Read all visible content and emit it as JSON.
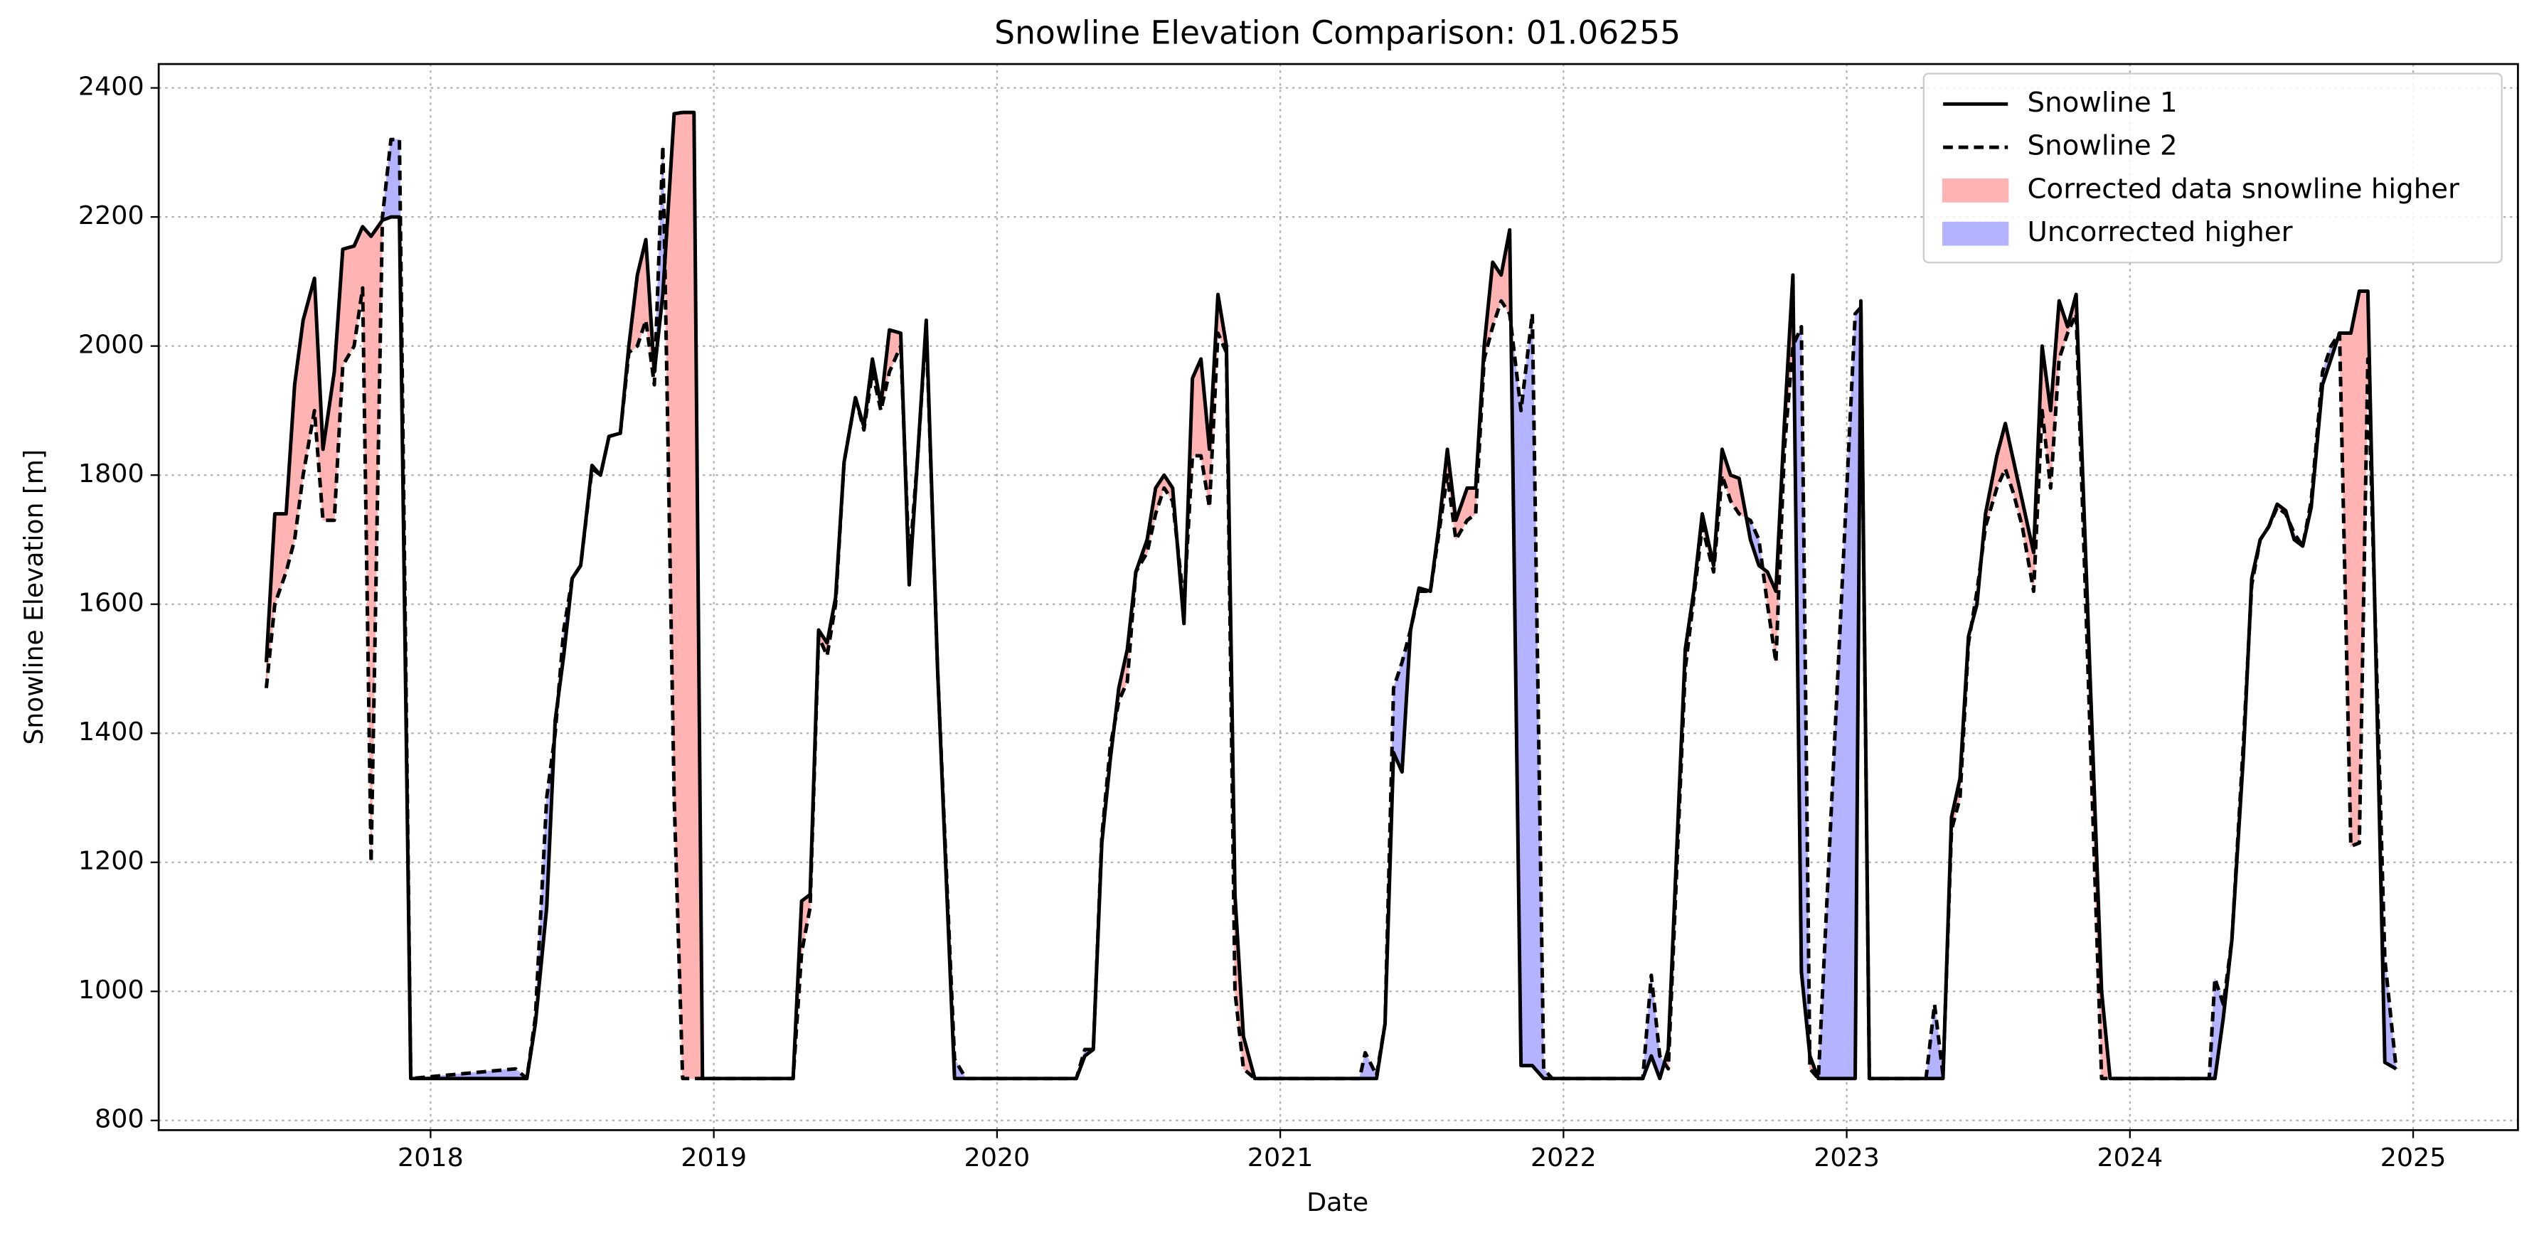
{
  "chart_data": {
    "type": "line",
    "title": "Snowline Elevation Comparison: 01.06255",
    "xlabel": "Date",
    "ylabel": "Snowline Elevation [m]",
    "x": [
      2017.42,
      2017.45,
      2017.49,
      2017.52,
      2017.55,
      2017.59,
      2017.62,
      2017.66,
      2017.69,
      2017.73,
      2017.76,
      2017.79,
      2017.83,
      2017.86,
      2017.89,
      2017.93,
      2018.3,
      2018.34,
      2018.37,
      2018.41,
      2018.44,
      2018.47,
      2018.5,
      2018.53,
      2018.57,
      2018.6,
      2018.63,
      2018.67,
      2018.7,
      2018.73,
      2018.76,
      2018.79,
      2018.82,
      2018.86,
      2018.89,
      2018.93,
      2018.96,
      2019.28,
      2019.31,
      2019.34,
      2019.37,
      2019.4,
      2019.43,
      2019.46,
      2019.5,
      2019.53,
      2019.56,
      2019.59,
      2019.62,
      2019.66,
      2019.69,
      2019.72,
      2019.75,
      2019.79,
      2019.85,
      2019.89,
      2020.28,
      2020.31,
      2020.34,
      2020.37,
      2020.4,
      2020.43,
      2020.46,
      2020.49,
      2020.53,
      2020.56,
      2020.59,
      2020.62,
      2020.66,
      2020.69,
      2020.72,
      2020.75,
      2020.78,
      2020.81,
      2020.84,
      2020.87,
      2020.91,
      2021.28,
      2021.3,
      2021.34,
      2021.37,
      2021.4,
      2021.43,
      2021.46,
      2021.49,
      2021.53,
      2021.56,
      2021.59,
      2021.62,
      2021.66,
      2021.69,
      2021.72,
      2021.75,
      2021.78,
      2021.81,
      2021.85,
      2021.89,
      2021.93,
      2021.96,
      2022.28,
      2022.31,
      2022.34,
      2022.37,
      2022.43,
      2022.46,
      2022.49,
      2022.53,
      2022.56,
      2022.59,
      2022.62,
      2022.66,
      2022.69,
      2022.72,
      2022.75,
      2022.78,
      2022.81,
      2022.84,
      2022.87,
      2022.9,
      2023.03,
      2023.05,
      2023.08,
      2023.28,
      2023.31,
      2023.34,
      2023.37,
      2023.4,
      2023.43,
      2023.46,
      2023.49,
      2023.53,
      2023.56,
      2023.59,
      2023.62,
      2023.66,
      2023.69,
      2023.72,
      2023.75,
      2023.78,
      2023.81,
      2023.9,
      2023.93,
      2024.28,
      2024.3,
      2024.33,
      2024.36,
      2024.4,
      2024.43,
      2024.46,
      2024.49,
      2024.52,
      2024.55,
      2024.58,
      2024.61,
      2024.64,
      2024.68,
      2024.71,
      2024.74,
      2024.78,
      2024.81,
      2024.84,
      2024.9,
      2024.94
    ],
    "series": [
      {
        "name": "Snowline 1",
        "color": "#000000",
        "linestyle": "solid",
        "values": [
          1510,
          1740,
          1740,
          1940,
          2040,
          2105,
          1840,
          1960,
          2150,
          2155,
          2185,
          2170,
          2195,
          2200,
          2200,
          865,
          865,
          865,
          950,
          1130,
          1420,
          1520,
          1640,
          1660,
          1815,
          1800,
          1860,
          1865,
          2000,
          2110,
          2165,
          1960,
          2080,
          2360,
          2362,
          2362,
          865,
          865,
          1140,
          1150,
          1560,
          1540,
          1610,
          1820,
          1920,
          1875,
          1980,
          1910,
          2025,
          2020,
          1630,
          1830,
          2040,
          1500,
          865,
          865,
          865,
          900,
          910,
          1230,
          1360,
          1470,
          1530,
          1650,
          1700,
          1780,
          1800,
          1780,
          1570,
          1950,
          1980,
          1840,
          2080,
          2000,
          1150,
          930,
          865,
          865,
          865,
          865,
          950,
          1370,
          1340,
          1560,
          1625,
          1620,
          1720,
          1840,
          1730,
          1780,
          1780,
          2000,
          2130,
          2110,
          2180,
          885,
          885,
          865,
          865,
          865,
          900,
          865,
          910,
          1530,
          1620,
          1740,
          1660,
          1840,
          1800,
          1795,
          1700,
          1660,
          1650,
          1620,
          1880,
          2110,
          1030,
          900,
          865,
          865,
          2070,
          865,
          865,
          865,
          865,
          1270,
          1330,
          1550,
          1600,
          1740,
          1830,
          1880,
          1820,
          1760,
          1680,
          2000,
          1900,
          2070,
          2030,
          2080,
          1000,
          865,
          865,
          865,
          960,
          1080,
          1360,
          1640,
          1700,
          1720,
          1755,
          1745,
          1700,
          1690,
          1750,
          1940,
          1980,
          2020,
          2020,
          2085,
          2085,
          890,
          880
        ]
      },
      {
        "name": "Snowline 2",
        "color": "#000000",
        "linestyle": "dashed",
        "values": [
          1470,
          1600,
          1650,
          1700,
          1800,
          1900,
          1730,
          1730,
          1970,
          2000,
          2090,
          1200,
          2200,
          2320,
          2320,
          865,
          880,
          865,
          960,
          1300,
          1400,
          1560,
          1640,
          1660,
          1810,
          1800,
          1860,
          1865,
          1990,
          2000,
          2040,
          1940,
          2310,
          1300,
          865,
          865,
          865,
          865,
          1060,
          1130,
          1550,
          1520,
          1600,
          1820,
          1920,
          1870,
          1960,
          1900,
          1960,
          2000,
          1660,
          1830,
          2030,
          1500,
          895,
          865,
          865,
          910,
          910,
          1240,
          1380,
          1450,
          1480,
          1650,
          1680,
          1740,
          1780,
          1760,
          1600,
          1830,
          1830,
          1750,
          2020,
          1990,
          1000,
          880,
          865,
          865,
          905,
          870,
          950,
          1470,
          1510,
          1560,
          1620,
          1620,
          1710,
          1800,
          1700,
          1730,
          1740,
          1980,
          2030,
          2070,
          2050,
          1900,
          2050,
          880,
          865,
          865,
          1025,
          900,
          880,
          1500,
          1610,
          1720,
          1650,
          1800,
          1760,
          1740,
          1730,
          1700,
          1600,
          1510,
          1840,
          2000,
          2030,
          880,
          865,
          2050,
          2060,
          865,
          865,
          980,
          870,
          1250,
          1300,
          1540,
          1620,
          1720,
          1780,
          1810,
          1770,
          1720,
          1620,
          1900,
          1780,
          1980,
          2020,
          2050,
          865,
          865,
          865,
          1020,
          980,
          1080,
          1380,
          1630,
          1700,
          1720,
          1750,
          1740,
          1710,
          1690,
          1760,
          1960,
          2000,
          2020,
          1225,
          1230,
          1980,
          1050,
          880
        ]
      }
    ],
    "fills": [
      {
        "name": "Corrected data snowline higher",
        "color": "#ffb3b3"
      },
      {
        "name": "Uncorrected higher",
        "color": "#b3b3ff"
      }
    ],
    "xlim": [
      2017.04,
      2025.37
    ],
    "xticks": [
      2018,
      2019,
      2020,
      2021,
      2022,
      2023,
      2024,
      2025
    ],
    "ylim": [
      785,
      2437
    ],
    "yticks": [
      800,
      1000,
      1200,
      1400,
      1600,
      1800,
      2000,
      2200,
      2400
    ],
    "grid": true,
    "legend": "upper right"
  }
}
